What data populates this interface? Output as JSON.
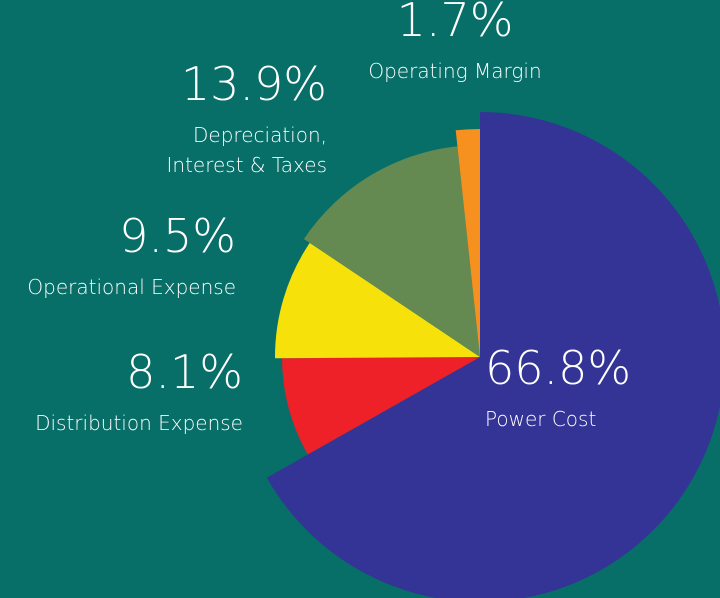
{
  "chart_data": {
    "type": "pie",
    "categories": [
      "Power Cost",
      "Distribution Expense",
      "Operational Expense",
      "Depreciation,\nInterest & Taxes",
      "Operating Margin"
    ],
    "values": [
      66.8,
      8.1,
      9.5,
      13.9,
      1.7
    ],
    "value_labels": [
      "66.8%",
      "8.1%",
      "9.5%",
      "13.9%",
      "1.7%"
    ],
    "colors": [
      "#343496",
      "#ee2028",
      "#f6e20a",
      "#648a52",
      "#f6901e"
    ]
  }
}
